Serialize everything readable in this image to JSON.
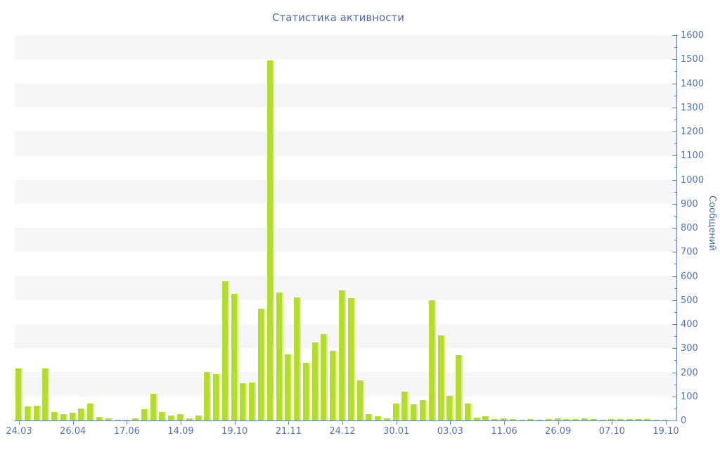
{
  "chart_data": {
    "type": "bar",
    "title": "Статистика активности",
    "ylabel": "Сообщений",
    "xlabel": "",
    "ylim": [
      0,
      1600
    ],
    "y_tick_step": 100,
    "y_minor_tick_step": 50,
    "grid": "alternating horizontal bands of 100 units",
    "legend": "none",
    "y_axis_position": "right",
    "x_tick_every": 6,
    "x_tick_labels": [
      "24.03",
      "26.04",
      "17.06",
      "14.09",
      "19.10",
      "21.11",
      "24.12",
      "30.01",
      "03.03",
      "11.06",
      "26.09",
      "07.10",
      "19.10"
    ],
    "values": [
      215,
      58,
      60,
      215,
      36,
      25,
      31,
      50,
      70,
      14,
      8,
      4,
      2,
      8,
      47,
      110,
      36,
      21,
      27,
      10,
      21,
      200,
      192,
      578,
      525,
      155,
      158,
      465,
      1495,
      530,
      275,
      510,
      240,
      325,
      360,
      290,
      540,
      508,
      165,
      27,
      18,
      8,
      71,
      121,
      67,
      85,
      500,
      352,
      103,
      272,
      69,
      13,
      18,
      6,
      10,
      7,
      4,
      6,
      4,
      6,
      9,
      5,
      6,
      8,
      5,
      3,
      6,
      7,
      5,
      5,
      7,
      4,
      3
    ],
    "colors": {
      "bar": "#b3dd2b",
      "bar_highlight": "#d9ec86",
      "axis": "#6080c0",
      "tick_label": "#5472b8",
      "title": "#4a6cb5",
      "band_gray": "#f6f6f7",
      "band_white": "#ffffff"
    }
  }
}
